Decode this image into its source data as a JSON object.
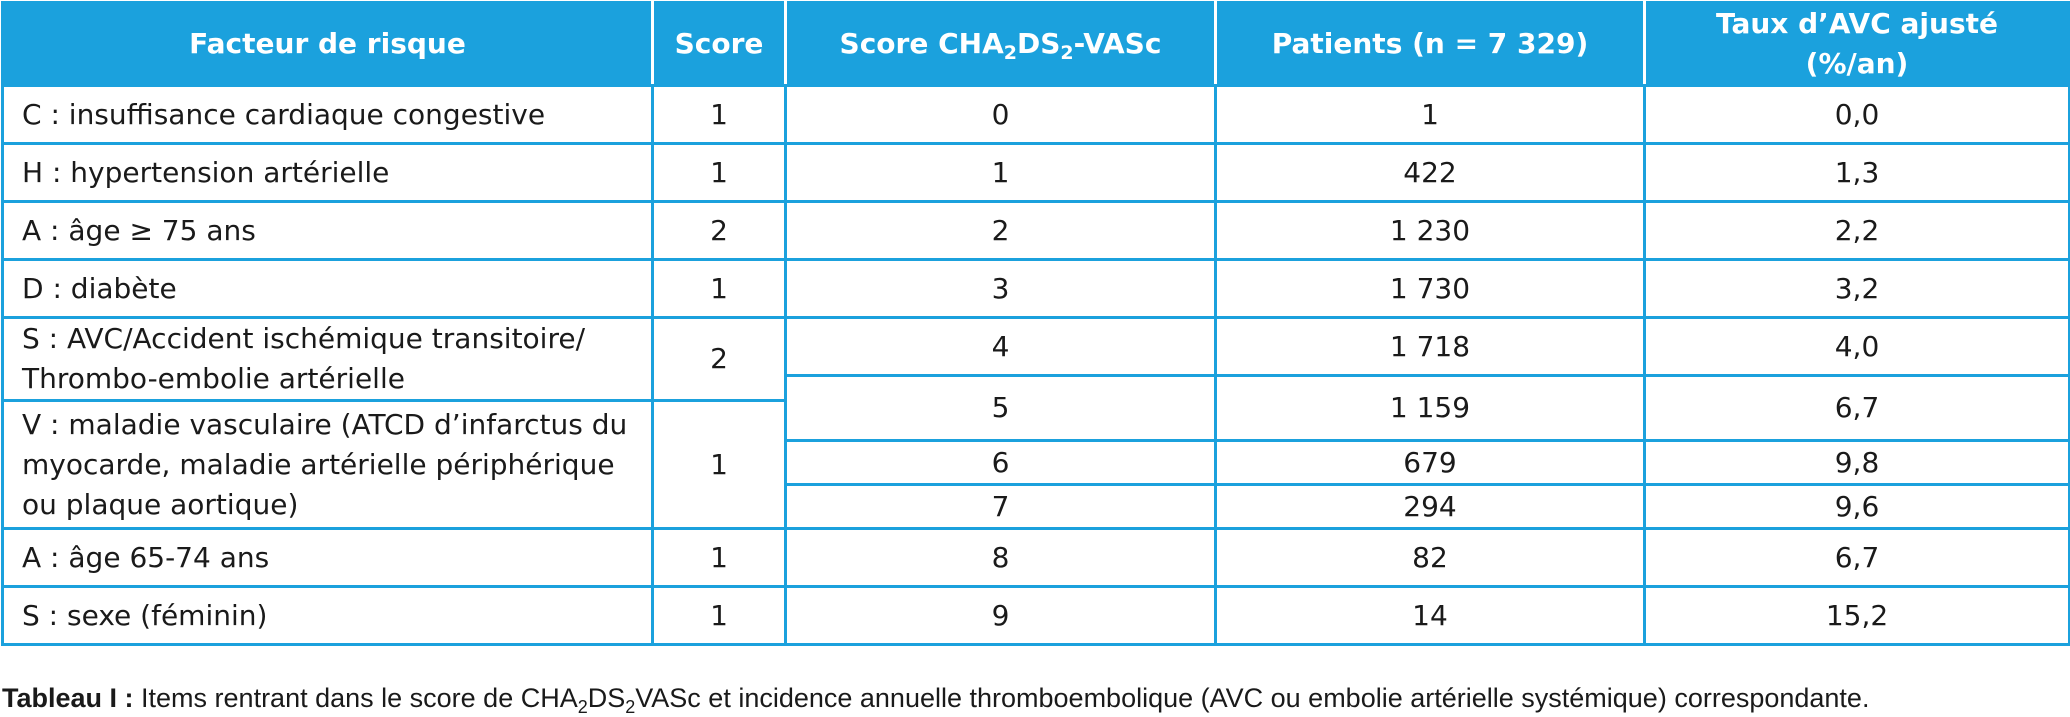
{
  "table": {
    "header": {
      "col1": "Facteur de risque",
      "col2": "Score",
      "col3_pre": "Score CHA",
      "col3_sub1": "2",
      "col3_mid": "DS",
      "col3_sub2": "2",
      "col3_post": "-VASc",
      "col4": "Patients (n = 7 329)",
      "col5": "Taux d’AVC ajusté (%/an)"
    },
    "factors": [
      {
        "label": "C : insuffisance cardiaque congestive",
        "score": "1"
      },
      {
        "label": "H : hypertension artérielle",
        "score": "1"
      },
      {
        "label": "A : âge ≥ 75 ans",
        "score": "2"
      },
      {
        "label": "D : diabète",
        "score": "1"
      },
      {
        "label": "S : AVC/Accident ischémique transitoire/ Thrombo-embolie artérielle",
        "score": "2"
      },
      {
        "label": "V : maladie vasculaire (ATCD d’infarctus du myocarde, maladie artérielle périphérique ou plaque aortique)",
        "score": "1"
      },
      {
        "label": "A : âge 65-74 ans",
        "score": "1"
      },
      {
        "label": "S : sexe (féminin)",
        "score": "1"
      }
    ],
    "scores": [
      {
        "score": "0",
        "patients": "1",
        "rate": "0,0"
      },
      {
        "score": "1",
        "patients": "422",
        "rate": "1,3"
      },
      {
        "score": "2",
        "patients": "1 230",
        "rate": "2,2"
      },
      {
        "score": "3",
        "patients": "1 730",
        "rate": "3,2"
      },
      {
        "score": "4",
        "patients": "1 718",
        "rate": "4,0"
      },
      {
        "score": "5",
        "patients": "1 159",
        "rate": "6,7"
      },
      {
        "score": "6",
        "patients": "679",
        "rate": "9,8"
      },
      {
        "score": "7",
        "patients": "294",
        "rate": "9,6"
      },
      {
        "score": "8",
        "patients": "82",
        "rate": "6,7"
      },
      {
        "score": "9",
        "patients": "14",
        "rate": "15,2"
      }
    ]
  },
  "caption": {
    "label": "Tableau I :",
    "text_pre": " Items rentrant dans le score de CHA",
    "sub1": "2",
    "text_mid": "DS",
    "sub2": "2",
    "text_post": "VASc et incidence annuelle thromboembolique (AVC ou embolie artérielle systémique) correspondante."
  },
  "colors": {
    "accent": "#1ba1dd",
    "header_text": "#ffffff"
  }
}
